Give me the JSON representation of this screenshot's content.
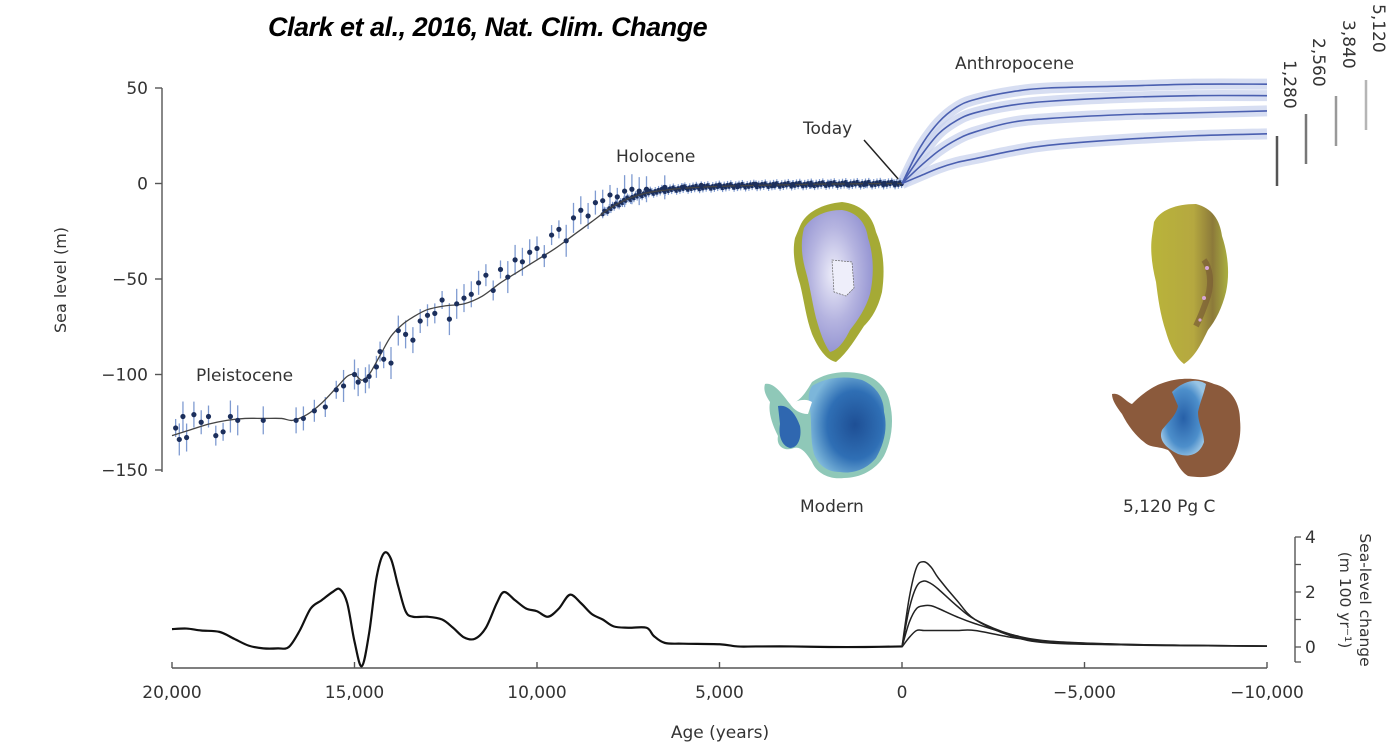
{
  "title": "Clark et al., 2016, Nat. Clim. Change",
  "chart_data": [
    {
      "type": "scatter",
      "name": "sea-level-history-and-projection",
      "ylabel": "Sea level (m)",
      "xlabel": "",
      "xlim": [
        20000,
        -10000
      ],
      "ylim": [
        -150,
        50
      ],
      "yticks": [
        50,
        0,
        -50,
        -100,
        -150
      ],
      "ytick_labels": [
        "50",
        "0",
        "−50",
        "−100",
        "−150"
      ],
      "annotations": {
        "pleistocene": "Pleistocene",
        "holocene": "Holocene",
        "today": "Today",
        "anthropocene": "Anthropocene",
        "modern": "Modern",
        "future": "5,120 Pg C"
      },
      "fit_curve": {
        "x": [
          20000,
          19500,
          19000,
          18500,
          18000,
          17500,
          17000,
          16700,
          16300,
          15900,
          15500,
          15200,
          15000,
          14800,
          14600,
          14300,
          14000,
          13700,
          13400,
          13000,
          12500,
          12000,
          11500,
          11000,
          10500,
          10000,
          9500,
          9000,
          8500,
          8000,
          7500,
          7000,
          6500,
          6000,
          5000,
          4000,
          3000,
          2000,
          1000,
          0
        ],
        "y": [
          -132,
          -129,
          -126,
          -124,
          -123,
          -123,
          -123,
          -124,
          -121,
          -115,
          -107,
          -101,
          -100,
          -103,
          -100,
          -90,
          -80,
          -74,
          -70,
          -66,
          -64,
          -63,
          -59,
          -52,
          -46,
          -40,
          -34,
          -27,
          -20,
          -13,
          -8,
          -5,
          -3.5,
          -2.5,
          -1.5,
          -1,
          -0.6,
          -0.3,
          -0.1,
          0
        ]
      },
      "observations": {
        "x": [
          19900,
          19800,
          19700,
          19600,
          19400,
          19200,
          19000,
          18800,
          18600,
          18400,
          18200,
          17500,
          16600,
          16400,
          16100,
          15800,
          15500,
          15300,
          15000,
          14900,
          14700,
          14600,
          14400,
          14300,
          14200,
          14000,
          13800,
          13600,
          13400,
          13200,
          13000,
          12800,
          12600,
          12400,
          12200,
          12000,
          11800,
          11600,
          11400,
          11200,
          11000,
          10800,
          10600,
          10400,
          10200,
          10000,
          9800,
          9600,
          9400,
          9200,
          9000,
          8800,
          8600,
          8400,
          8200,
          8000,
          7800,
          7600,
          7400,
          7200,
          7000,
          6500,
          6000,
          5500,
          5000,
          4500,
          4000,
          3500,
          3000,
          2500,
          2000,
          1500,
          1000,
          500,
          200
        ],
        "y": [
          -128,
          -134,
          -122,
          -133,
          -121,
          -125,
          -122,
          -132,
          -130,
          -122,
          -124,
          -124,
          -124,
          -123,
          -119,
          -117,
          -108,
          -106,
          -100,
          -104,
          -103,
          -101,
          -96,
          -88,
          -92,
          -94,
          -77,
          -79,
          -82,
          -72,
          -69,
          -68,
          -61,
          -71,
          -63,
          -60,
          -58,
          -52,
          -48,
          -56,
          -45,
          -49,
          -40,
          -41,
          -36,
          -34,
          -38,
          -27,
          -24,
          -30,
          -18,
          -14,
          -17,
          -10,
          -9,
          -6,
          -7,
          -4,
          -3,
          -4,
          -3,
          -2,
          -2,
          -1,
          -1,
          -1.5,
          -0.5,
          -1,
          -0.5,
          -0.8,
          -0.2,
          -0.5,
          -0.3,
          0,
          0
        ]
      },
      "projections": [
        {
          "name": "5,120",
          "x": [
            0,
            -500,
            -1000,
            -1500,
            -2000,
            -3000,
            -4000,
            -6000,
            -8000,
            -10000
          ],
          "y": [
            0,
            19,
            32,
            40,
            44,
            48,
            50,
            51,
            52,
            52
          ]
        },
        {
          "name": "3,840",
          "x": [
            0,
            -500,
            -1000,
            -1500,
            -2000,
            -3000,
            -4000,
            -6000,
            -8000,
            -10000
          ],
          "y": [
            0,
            14,
            26,
            33,
            37,
            41,
            43,
            45,
            46,
            46
          ]
        },
        {
          "name": "2,560",
          "x": [
            0,
            -500,
            -1000,
            -1500,
            -2000,
            -3000,
            -4000,
            -6000,
            -8000,
            -10000
          ],
          "y": [
            0,
            9,
            17,
            23,
            27,
            32,
            34,
            36,
            37,
            38
          ]
        },
        {
          "name": "1,280",
          "x": [
            0,
            -500,
            -1000,
            -1500,
            -2000,
            -3000,
            -4000,
            -6000,
            -8000,
            -10000
          ],
          "y": [
            0,
            4,
            8,
            11,
            13,
            17,
            20,
            23,
            25,
            26
          ]
        }
      ],
      "legend": [
        "5,120",
        "3,840",
        "2,560",
        "1,280"
      ],
      "legend_placement": "top-right"
    },
    {
      "type": "line",
      "name": "rate-of-sea-level-change",
      "xlabel": "Age (years)",
      "ylabel": "Sea-level change (m 100 yr⁻¹)",
      "xlim": [
        20000,
        -10000
      ],
      "ylim": [
        -0.5,
        4
      ],
      "xticks": [
        20000,
        15000,
        10000,
        5000,
        0,
        -5000,
        -10000
      ],
      "xtick_labels": [
        "20,000",
        "15,000",
        "10,000",
        "5,000",
        "0",
        "−5,000",
        "−10,000"
      ],
      "yticks": [
        4,
        2,
        0
      ],
      "ytick_labels": [
        "4",
        "2",
        "0"
      ],
      "history": {
        "x": [
          20000,
          19600,
          19200,
          18700,
          18300,
          17900,
          17500,
          17100,
          16800,
          16500,
          16200,
          15900,
          15600,
          15400,
          15200,
          15000,
          14800,
          14600,
          14400,
          14200,
          14000,
          13800,
          13600,
          13400,
          13000,
          12600,
          12300,
          12000,
          11700,
          11400,
          11100,
          10900,
          10600,
          10300,
          10000,
          9700,
          9400,
          9100,
          8800,
          8500,
          8200,
          7900,
          7500,
          7000,
          6800,
          6500,
          6000,
          5000,
          4500,
          4000,
          3000,
          2000,
          1000,
          0
        ],
        "y": [
          0.65,
          0.67,
          0.6,
          0.55,
          0.3,
          0.05,
          -0.05,
          -0.05,
          0,
          0.6,
          1.4,
          1.7,
          2.0,
          2.1,
          1.6,
          0.2,
          -0.7,
          0.5,
          2.5,
          3.4,
          3.2,
          2.2,
          1.3,
          1.1,
          1.1,
          1.0,
          0.7,
          0.35,
          0.3,
          0.7,
          1.6,
          2.0,
          1.7,
          1.4,
          1.3,
          1.1,
          1.4,
          1.9,
          1.6,
          1.2,
          1.0,
          0.75,
          0.7,
          0.7,
          0.4,
          0.15,
          0.12,
          0.1,
          0.02,
          0.02,
          0.02,
          0.0,
          0.0,
          0.02
        ]
      },
      "series": [
        {
          "name": "5,120",
          "x": [
            0,
            -200,
            -400,
            -600,
            -800,
            -1000,
            -1500,
            -2000,
            -3000,
            -4000,
            -6000,
            -8000,
            -10000
          ],
          "y": [
            0,
            1.8,
            2.9,
            3.1,
            2.9,
            2.5,
            1.7,
            1.0,
            0.4,
            0.15,
            0.08,
            0.05,
            0.03
          ]
        },
        {
          "name": "3,840",
          "x": [
            0,
            -200,
            -400,
            -600,
            -800,
            -1000,
            -1500,
            -2000,
            -3000,
            -4000,
            -6000,
            -8000,
            -10000
          ],
          "y": [
            0,
            1.4,
            2.2,
            2.4,
            2.3,
            2.1,
            1.5,
            1.0,
            0.45,
            0.2,
            0.08,
            0.05,
            0.03
          ]
        },
        {
          "name": "2,560",
          "x": [
            0,
            -200,
            -400,
            -600,
            -800,
            -1000,
            -1500,
            -2000,
            -3000,
            -4000,
            -6000,
            -8000,
            -10000
          ],
          "y": [
            0,
            0.9,
            1.4,
            1.5,
            1.5,
            1.4,
            1.1,
            0.85,
            0.45,
            0.22,
            0.1,
            0.06,
            0.03
          ]
        },
        {
          "name": "1,280",
          "x": [
            0,
            -200,
            -400,
            -600,
            -800,
            -1000,
            -1500,
            -2000,
            -3000,
            -4000,
            -6000,
            -8000,
            -10000
          ],
          "y": [
            0,
            0.35,
            0.6,
            0.6,
            0.6,
            0.6,
            0.6,
            0.6,
            0.35,
            0.2,
            0.1,
            0.06,
            0.03
          ]
        }
      ]
    }
  ],
  "colors": {
    "projection_line": "#4a5fb0",
    "projection_band": "#c9d3ee",
    "observation_point": "#1c2f5c",
    "error_bar": "#7f9bd1",
    "fit_curve": "#444444",
    "axis": "#555555",
    "text": "#333333"
  }
}
